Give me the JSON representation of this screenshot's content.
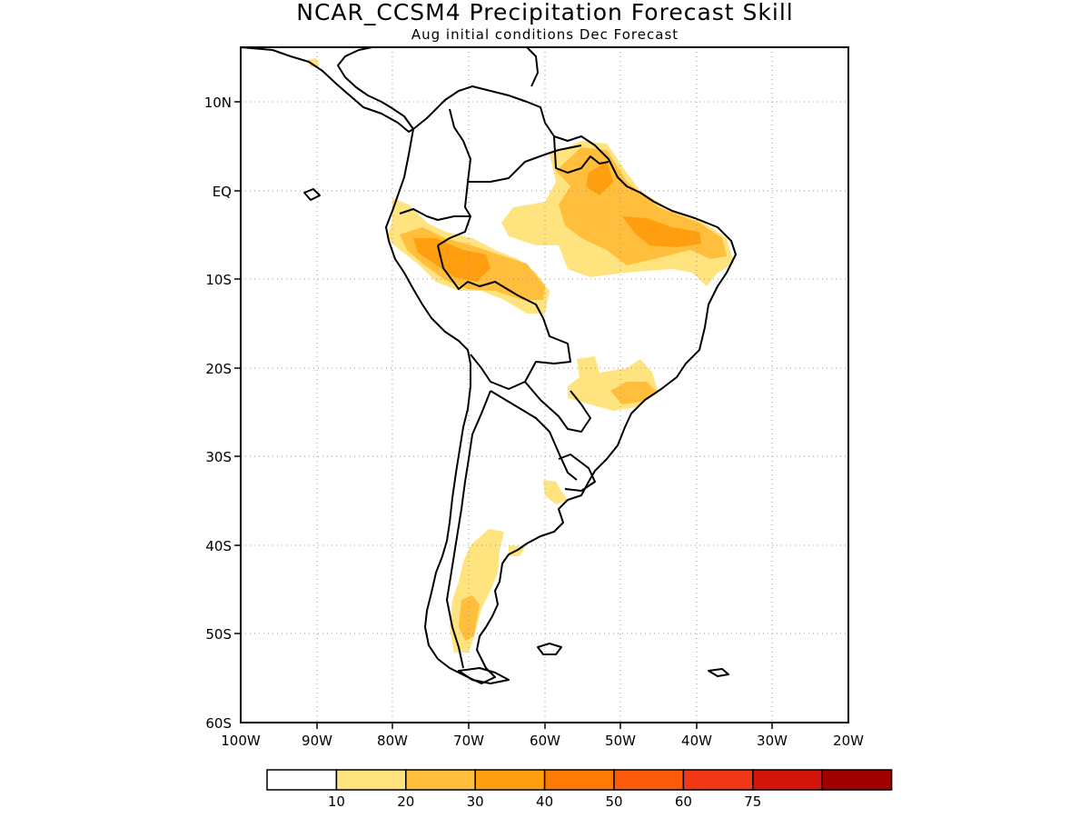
{
  "title": "NCAR_CCSM4 Precipitation Forecast Skill",
  "subtitle": "Aug initial conditions   Dec Forecast",
  "map": {
    "region": "South America",
    "projection": "lat-lon",
    "lon_range": [
      -100,
      -20
    ],
    "lat_range": [
      -60,
      15
    ],
    "grid": "dotted",
    "lat_ticks": [
      {
        "value": 10,
        "label": "10N"
      },
      {
        "value": 0,
        "label": "EQ"
      },
      {
        "value": -10,
        "label": "10S"
      },
      {
        "value": -20,
        "label": "20S"
      },
      {
        "value": -30,
        "label": "30S"
      },
      {
        "value": -40,
        "label": "40S"
      },
      {
        "value": -50,
        "label": "50S"
      },
      {
        "value": -60,
        "label": "60S"
      }
    ],
    "lon_ticks": [
      {
        "value": -100,
        "label": "100W"
      },
      {
        "value": -90,
        "label": "90W"
      },
      {
        "value": -80,
        "label": "80W"
      },
      {
        "value": -70,
        "label": "70W"
      },
      {
        "value": -60,
        "label": "60W"
      },
      {
        "value": -50,
        "label": "50W"
      },
      {
        "value": -40,
        "label": "40W"
      },
      {
        "value": -30,
        "label": "30W"
      },
      {
        "value": -20,
        "label": "20W"
      }
    ]
  },
  "colorbar": {
    "colors": [
      "#ffffff",
      "#ffe37f",
      "#ffbe3c",
      "#ff9f10",
      "#ff7a05",
      "#fa5a0a",
      "#f03818",
      "#d2140a",
      "#a00000"
    ],
    "boundaries": [
      "10",
      "20",
      "30",
      "40",
      "50",
      "60",
      "75"
    ]
  }
}
